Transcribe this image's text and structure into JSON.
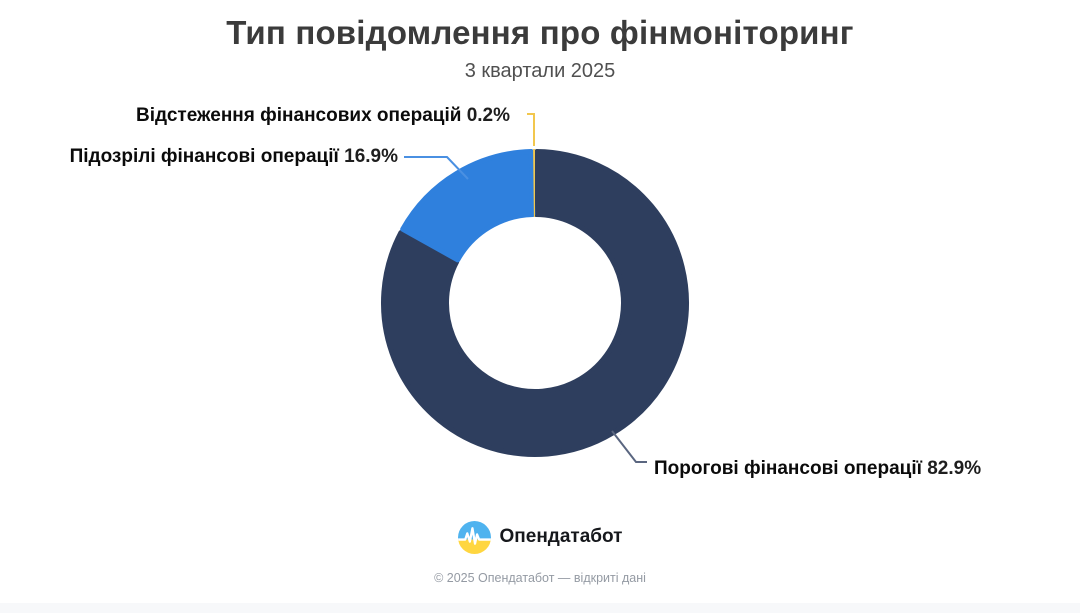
{
  "page": {
    "title": "Тип повідомлення про фінмоніторинг",
    "subtitle": "3 квартали 2025",
    "footer": "© 2025 Опендатабот — відкриті дані",
    "brand": {
      "name": "Опендатабот"
    }
  },
  "colors": {
    "threshold_slice": "#2e3e5e",
    "suspicious_slice": "#2f80dd",
    "tracking_slice": "#f2c74e",
    "leader_threshold": "#5a6680",
    "leader_suspicious": "#4a90e2",
    "leader_tracking": "#f2c74e",
    "title_text": "#3b3b3b",
    "footer_text": "#949aa3",
    "logo_blue": "#4fb3ef",
    "logo_yellow": "#ffd640",
    "bottom_strip": "#f7f8fa"
  },
  "chart_data": {
    "type": "pie",
    "donut": true,
    "title": "Тип повідомлення про фінмоніторинг",
    "subtitle": "3 квартали 2025",
    "legend_position": "none",
    "inner_radius_ratio": 0.56,
    "start_angle_deg": 0,
    "direction": "clockwise-from-top",
    "value_suffix": "%",
    "slices": [
      {
        "label": "Порогові фінансові операції",
        "value": 82.9,
        "pct_label": "82.9%",
        "color": "#2e3e5e"
      },
      {
        "label": "Підозрілі фінансові операції",
        "value": 16.9,
        "pct_label": "16.9%",
        "color": "#2f80dd"
      },
      {
        "label": "Відстеження фінансових операцій",
        "value": 0.2,
        "pct_label": "0.2%",
        "color": "#f2c74e"
      }
    ]
  }
}
